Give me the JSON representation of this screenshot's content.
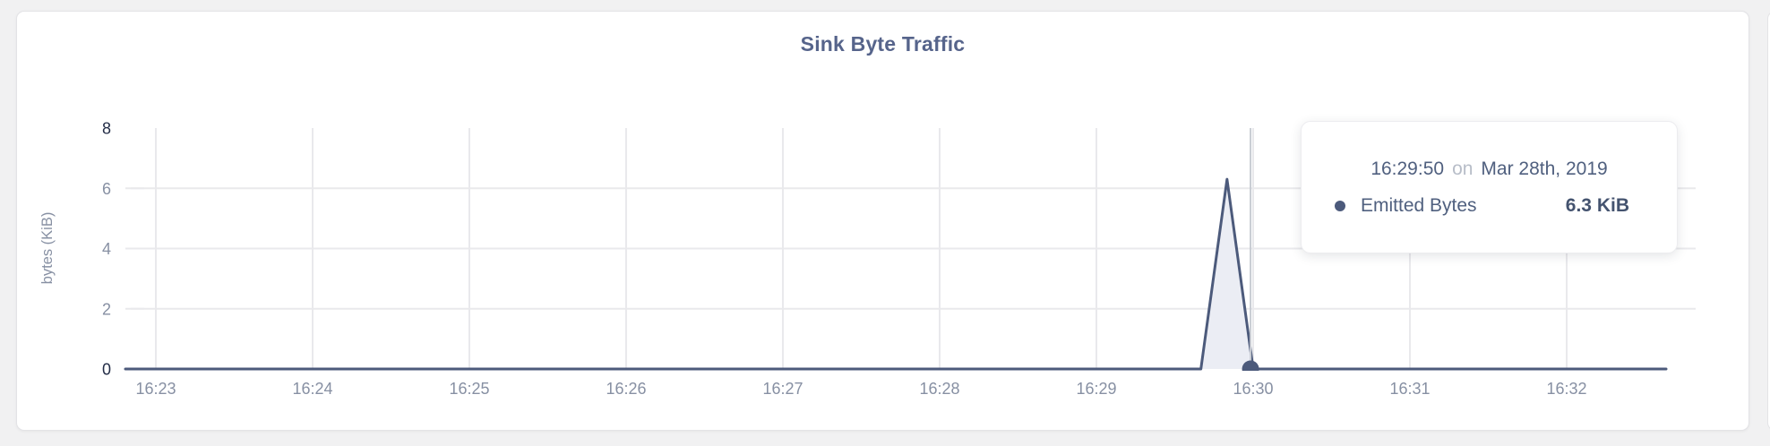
{
  "card": {
    "title": "Sink Byte Traffic"
  },
  "tooltip": {
    "time": "16:29:50",
    "conjunction": "on",
    "date": "Mar 28th, 2019",
    "series_label": "Emitted Bytes",
    "value": "6.3 KiB"
  },
  "chart_data": {
    "type": "area",
    "title": "Sink Byte Traffic",
    "xlabel": "",
    "ylabel": "bytes (KiB)",
    "ylim": [
      0,
      8
    ],
    "y_ticks": [
      8,
      6,
      4,
      2,
      0
    ],
    "x_ticks": [
      "16:23",
      "16:24",
      "16:25",
      "16:26",
      "16:27",
      "16:28",
      "16:29",
      "16:30",
      "16:31",
      "16:32"
    ],
    "grid": true,
    "legend_position": "none",
    "series": [
      {
        "name": "Emitted Bytes",
        "unit": "KiB",
        "points": [
          {
            "t": "16:23:00",
            "v": 0
          },
          {
            "t": "16:29:40",
            "v": 0
          },
          {
            "t": "16:29:50",
            "v": 6.3
          },
          {
            "t": "16:30:00",
            "v": 0
          },
          {
            "t": "16:32:30",
            "v": 0
          }
        ]
      }
    ],
    "hover": {
      "crosshair_time": "16:29:59",
      "marker_time": "16:29:59",
      "marker_value": 0
    },
    "colors": {
      "series_stroke": "#4c5a7b",
      "series_fill": "#ebedf4",
      "grid": "#e9e9ec",
      "crosshair": "#c8ccd3",
      "title": "#56648b",
      "tick_text": "#8790a3",
      "tick_endpoint": "#232d47",
      "tooltip_text": "#50607f",
      "tooltip_muted": "#b7bdc8",
      "tooltip_value": "#44536f"
    }
  }
}
